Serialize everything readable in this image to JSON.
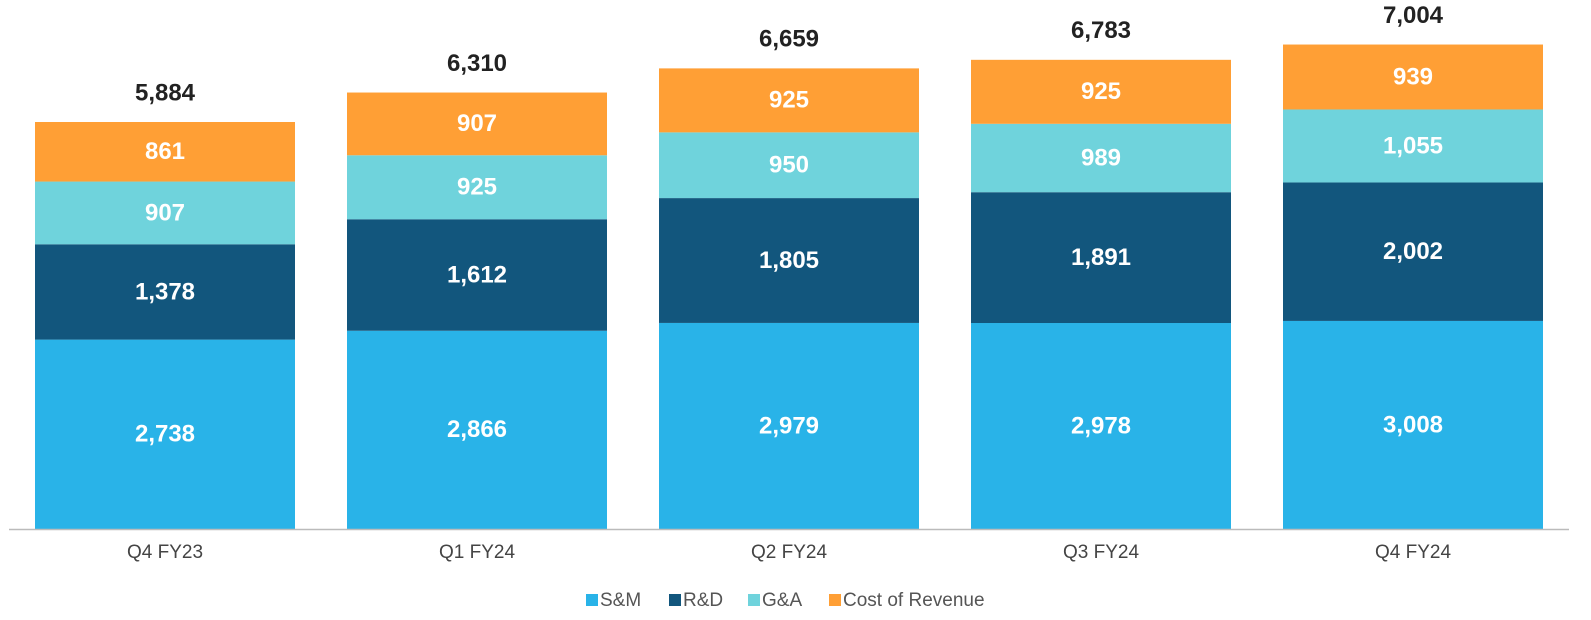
{
  "chart_data": {
    "type": "stacked_bar",
    "categories": [
      "Q4 FY23",
      "Q1 FY24",
      "Q2 FY24",
      "Q3 FY24",
      "Q4 FY24"
    ],
    "series": [
      {
        "name": "S&M",
        "color": "#29b3e8",
        "values": [
          2738,
          2866,
          2979,
          2978,
          3008
        ],
        "value_labels": [
          "2,738",
          "2,866",
          "2,979",
          "2,978",
          "3,008"
        ]
      },
      {
        "name": "R&D",
        "color": "#12567d",
        "values": [
          1378,
          1612,
          1805,
          1891,
          2002
        ],
        "value_labels": [
          "1,378",
          "1,612",
          "1,805",
          "1,891",
          "2,002"
        ]
      },
      {
        "name": "G&A",
        "color": "#6fd3dc",
        "values": [
          907,
          925,
          950,
          989,
          1055
        ],
        "value_labels": [
          "907",
          "925",
          "950",
          "989",
          "1,055"
        ]
      },
      {
        "name": "Cost of Revenue",
        "color": "#ff9f35",
        "values": [
          861,
          907,
          925,
          925,
          939
        ],
        "value_labels": [
          "861",
          "907",
          "925",
          "925",
          "939"
        ]
      }
    ],
    "totals": [
      5884,
      6310,
      6659,
      6783,
      7004
    ],
    "total_labels": [
      "5,884",
      "6,310",
      "6,659",
      "6,783",
      "7,004"
    ]
  }
}
